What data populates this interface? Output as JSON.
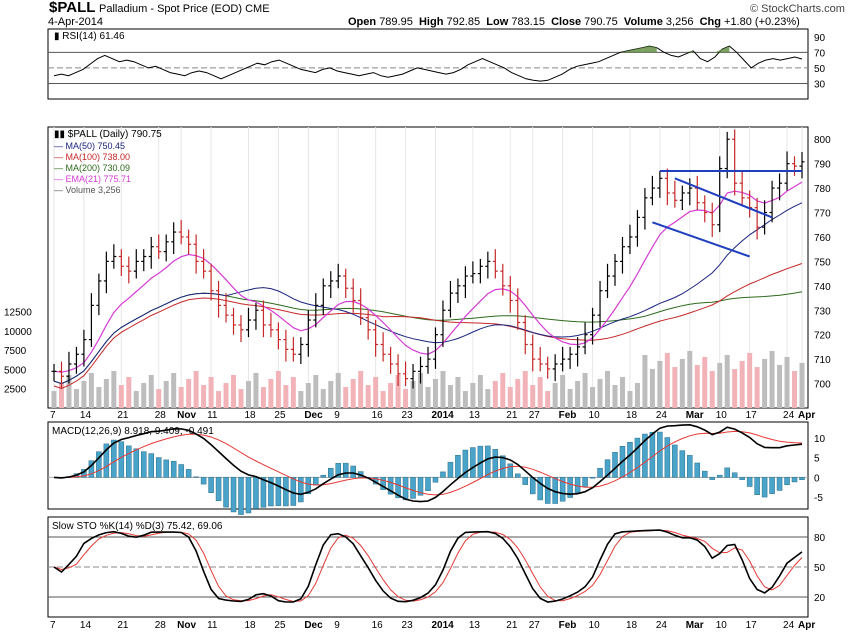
{
  "header": {
    "symbol": "$PALL",
    "name": "Palladium - Spot Price (EOD)",
    "exchange": "CME",
    "date": "4-Apr-2014",
    "watermark": "© StockCharts.com",
    "quote": {
      "open_label": "Open",
      "open": "789.95",
      "high_label": "High",
      "high": "792.85",
      "low_label": "Low",
      "low": "783.15",
      "close_label": "Close",
      "close": "790.75",
      "volume_label": "Volume",
      "volume": "3,256",
      "chg_label": "Chg",
      "chg": "+1.80 (+0.23%)"
    }
  },
  "chart_data": [
    {
      "type": "line",
      "panel": "rsi",
      "label": "RSI(14) 61.46",
      "ylim": [
        10,
        100
      ],
      "yticks": [
        90,
        70,
        50,
        30
      ],
      "reference_lines": [
        70,
        50,
        30
      ],
      "series": [
        {
          "name": "RSI(14)",
          "values": [
            40,
            42,
            40,
            44,
            48,
            55,
            62,
            66,
            62,
            58,
            60,
            58,
            54,
            50,
            52,
            48,
            44,
            42,
            40,
            44,
            46,
            44,
            40,
            36,
            40,
            44,
            48,
            52,
            56,
            54,
            58,
            60,
            56,
            52,
            48,
            46,
            44,
            48,
            50,
            46,
            44,
            42,
            40,
            42,
            44,
            40,
            38,
            40,
            42,
            46,
            50,
            48,
            46,
            44,
            42,
            44,
            48,
            54,
            58,
            62,
            58,
            54,
            50,
            44,
            40,
            36,
            34,
            33,
            34,
            38,
            42,
            48,
            52,
            54,
            56,
            58,
            62,
            66,
            70,
            72,
            74,
            76,
            78,
            76,
            70,
            66,
            64,
            68,
            72,
            62,
            58,
            64,
            74,
            78,
            70,
            60,
            50,
            56,
            60,
            62,
            60,
            62,
            64,
            61.46
          ]
        }
      ],
      "color": "#000000"
    },
    {
      "type": "bar-ohlc",
      "panel": "price",
      "label": "$PALL (Daily) 790.75",
      "ylim": [
        690,
        805
      ],
      "yticks": [
        700,
        710,
        720,
        730,
        740,
        750,
        760,
        770,
        780,
        790,
        800
      ],
      "x_labels": [
        "7",
        "14",
        "21",
        "28",
        "Nov",
        "11",
        "18",
        "25",
        "Dec",
        "9",
        "16",
        "23",
        "2014",
        "13",
        "21",
        "27",
        "Feb",
        "10",
        "18",
        "24",
        "Mar",
        "10",
        "17",
        "24",
        "Apr"
      ],
      "legend": [
        {
          "name": "MA(50)",
          "value": "750.45",
          "color": "#1a237e"
        },
        {
          "name": "MA(100)",
          "value": "738.00",
          "color": "#c62828"
        },
        {
          "name": "MA(200)",
          "value": "730.09",
          "color": "#2e6b1e"
        },
        {
          "name": "EMA(21)",
          "value": "775.71",
          "color": "#d63ad6"
        },
        {
          "name": "Volume",
          "value": "3,256",
          "color": "#555555"
        }
      ],
      "closes": [
        705,
        703,
        708,
        712,
        718,
        732,
        742,
        750,
        752,
        748,
        746,
        750,
        752,
        756,
        754,
        758,
        762,
        760,
        757,
        750,
        746,
        738,
        732,
        728,
        724,
        722,
        726,
        730,
        724,
        722,
        718,
        714,
        712,
        716,
        726,
        732,
        740,
        742,
        744,
        739,
        734,
        727,
        722,
        716,
        712,
        708,
        704,
        702,
        705,
        707,
        710,
        720,
        730,
        737,
        740,
        744,
        745,
        748,
        750,
        746,
        740,
        734,
        725,
        716,
        710,
        708,
        706,
        708,
        710,
        712,
        715,
        720,
        728,
        738,
        744,
        750,
        756,
        760,
        768,
        776,
        780,
        784,
        778,
        775,
        778,
        780,
        774,
        770,
        765,
        788,
        800,
        782,
        776,
        772,
        764,
        770,
        780,
        782,
        790,
        789,
        790.75
      ],
      "volume_axis": {
        "ylim": [
          0,
          14000
        ],
        "yticks": [
          2500,
          5000,
          7500,
          10000,
          12500
        ]
      },
      "trendlines": [
        {
          "from": [
            81,
            787
          ],
          "to": [
            101,
            787
          ],
          "color": "#1f3fbf"
        },
        {
          "from": [
            83,
            784
          ],
          "to": [
            96,
            768
          ],
          "color": "#1f3fbf"
        },
        {
          "from": [
            80,
            766
          ],
          "to": [
            93,
            752
          ],
          "color": "#1f3fbf"
        }
      ]
    },
    {
      "type": "line",
      "panel": "macd",
      "label": "MACD(12,26,9) 8.918, 9.409, -0.491",
      "ylim": [
        -8,
        14
      ],
      "yticks": [
        10,
        5,
        0,
        -5
      ],
      "series": [
        {
          "name": "MACD",
          "color": "#000000"
        },
        {
          "name": "Signal",
          "color": "#e53935"
        },
        {
          "name": "Histogram",
          "color": "#4aa3c8"
        }
      ]
    },
    {
      "type": "line",
      "panel": "sto",
      "label": "Slow STO %K(14) %D(3) 75.42, 69.06",
      "ylim": [
        0,
        100
      ],
      "yticks": [
        80,
        50,
        20
      ],
      "reference_lines": [
        80,
        50,
        20
      ],
      "series": [
        {
          "name": "%K",
          "color": "#000000"
        },
        {
          "name": "%D",
          "color": "#e53935"
        }
      ]
    }
  ]
}
